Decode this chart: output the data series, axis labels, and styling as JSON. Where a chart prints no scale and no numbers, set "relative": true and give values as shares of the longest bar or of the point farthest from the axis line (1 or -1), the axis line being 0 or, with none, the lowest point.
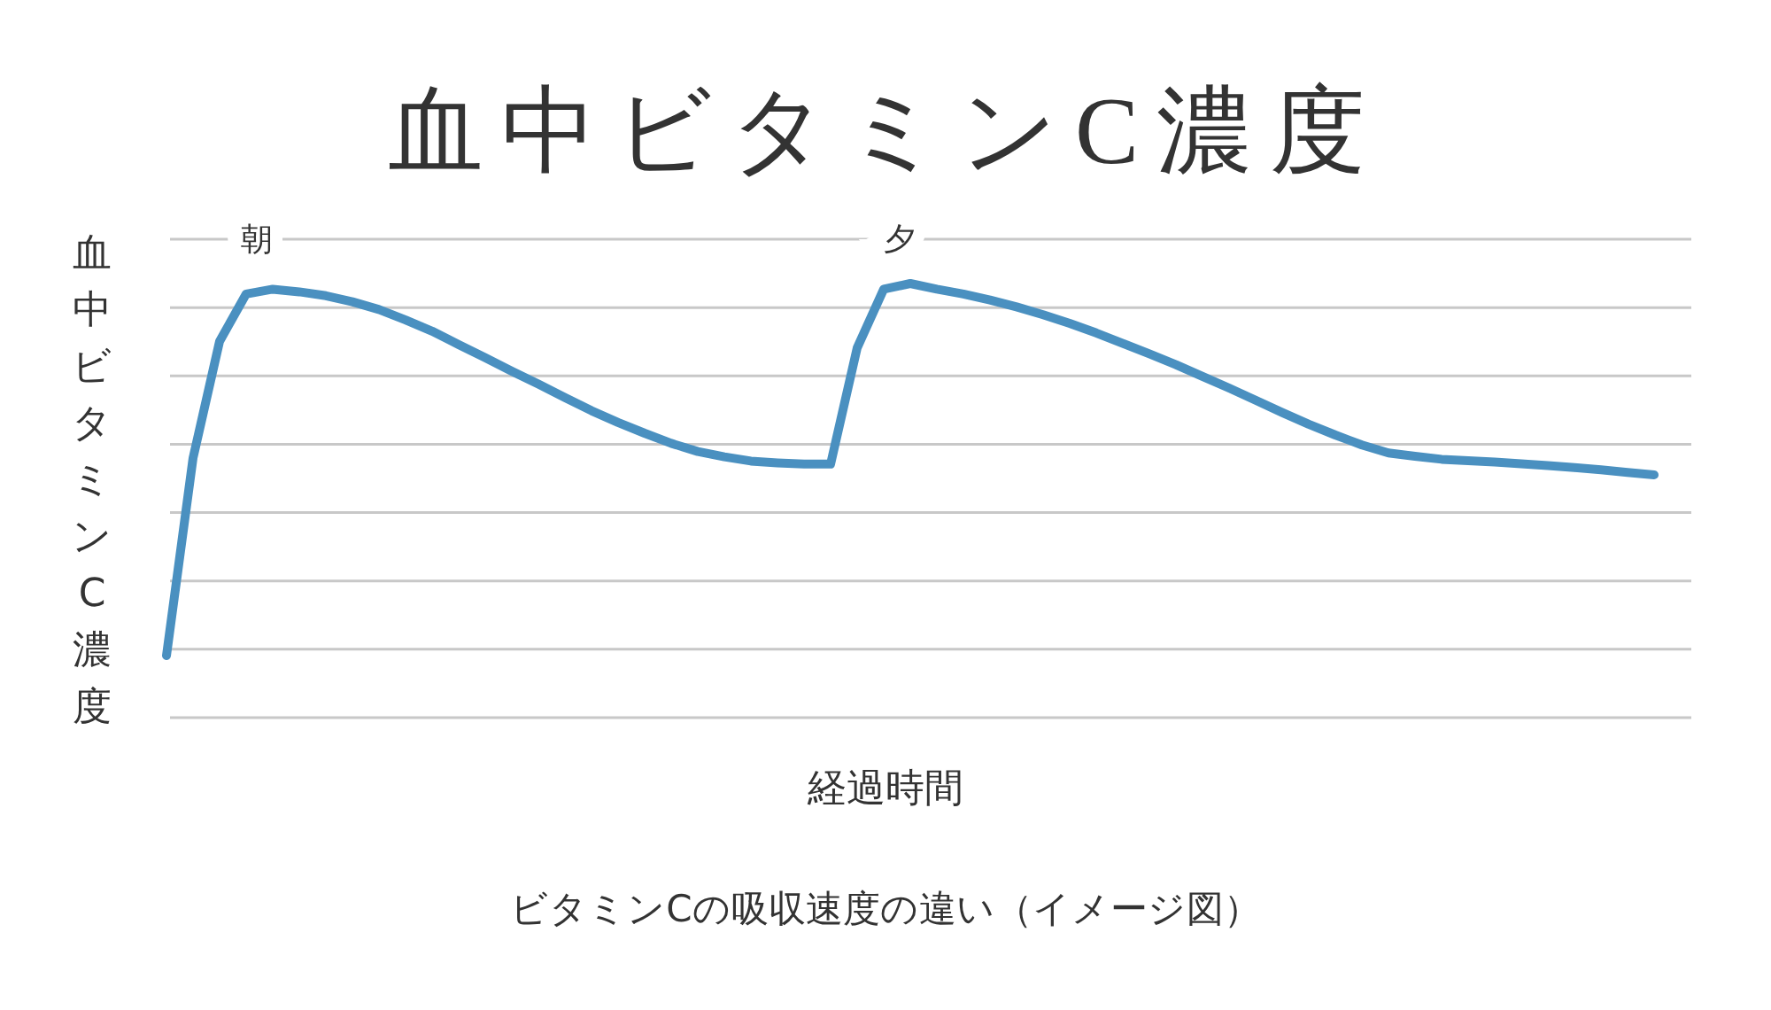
{
  "chart_data": {
    "type": "line",
    "title": "血中ビタミンC濃度",
    "xlabel": "経過時間",
    "ylabel": "血中ビタミンC濃度",
    "relative": true,
    "grid": "y",
    "categories": [
      null,
      null,
      null,
      null,
      null,
      null,
      null,
      null,
      null,
      null,
      null,
      null,
      null,
      null,
      null,
      null,
      null,
      null,
      null,
      null,
      null,
      null,
      null,
      null,
      null,
      null,
      null,
      null,
      null,
      null,
      null,
      null,
      null,
      null,
      null,
      null,
      null,
      null,
      null,
      null,
      null,
      null,
      null,
      null,
      null,
      null,
      null,
      null,
      null,
      null,
      null,
      null,
      null,
      null,
      null,
      null,
      null
    ],
    "series": [
      {
        "color": "#4a90c0",
        "values": [
          0.143,
          0.598,
          0.867,
          0.976,
          0.987,
          0.981,
          0.972,
          0.958,
          0.94,
          0.916,
          0.89,
          0.859,
          0.829,
          0.798,
          0.768,
          0.737,
          0.707,
          0.68,
          0.655,
          0.632,
          0.613,
          0.601,
          0.591,
          0.587,
          0.584,
          0.584,
          0.852,
          0.987,
          1,
          0.987,
          0.976,
          0.962,
          0.946,
          0.928,
          0.908,
          0.886,
          0.862,
          0.838,
          0.813,
          0.786,
          0.759,
          0.731,
          0.703,
          0.676,
          0.651,
          0.628,
          0.61,
          0.602,
          0.595,
          0.592,
          0.589,
          0.585,
          0.581,
          0.576,
          0.571,
          0.565,
          0.559
        ]
      }
    ],
    "annotations": [
      "朝",
      "夕",
      "ビタミンCの吸収速度の違い（イメージ図）"
    ]
  }
}
